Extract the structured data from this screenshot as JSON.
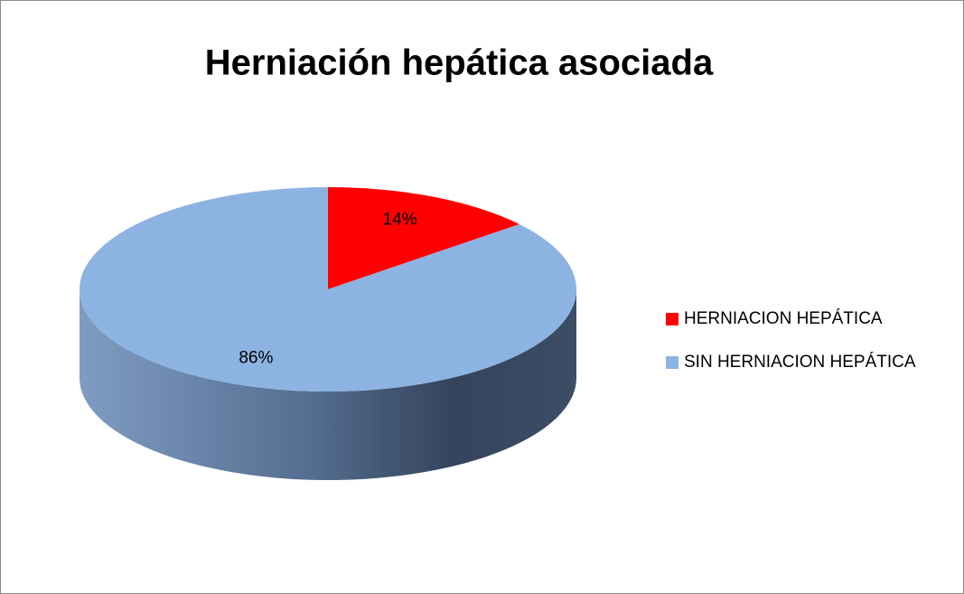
{
  "chart_data": {
    "type": "pie",
    "title": "Herniación hepática asociada",
    "categories": [
      "HERNIACION HEPÁTICA",
      "SIN HERNIACION HEPÁTICA"
    ],
    "values": [
      14,
      86
    ],
    "value_labels": [
      "14%",
      "86%"
    ],
    "colors": [
      "#ff0000",
      "#8db3e2"
    ],
    "legend": "right"
  }
}
